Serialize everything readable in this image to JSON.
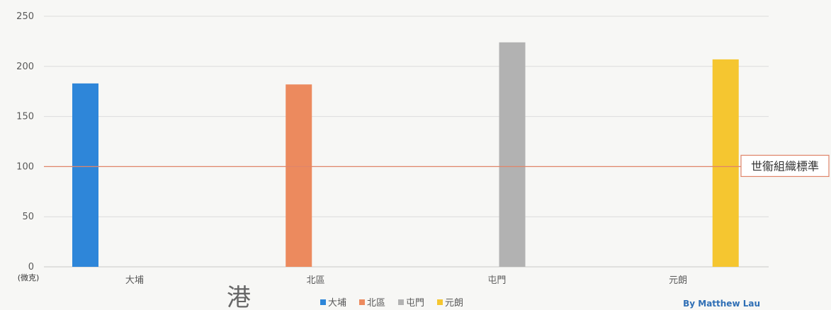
{
  "chart_data": {
    "type": "bar",
    "categories": [
      "大埔",
      "北區",
      "屯門",
      "元朗"
    ],
    "values": [
      183,
      182,
      224,
      207
    ],
    "colors": [
      "#2e86d9",
      "#ec8a5e",
      "#b2b2b2",
      "#f5c630"
    ],
    "ylim": [
      0,
      250
    ],
    "yticks": [
      0,
      50,
      100,
      150,
      200,
      250
    ],
    "ylabel": "(微克)",
    "grid": true,
    "legend_position": "bottom",
    "reference_line": {
      "value": 100,
      "label": "世衞組織標準",
      "color": "#e0856a"
    }
  },
  "credit": "By Matthew Lau",
  "handwritten_mark": "港"
}
